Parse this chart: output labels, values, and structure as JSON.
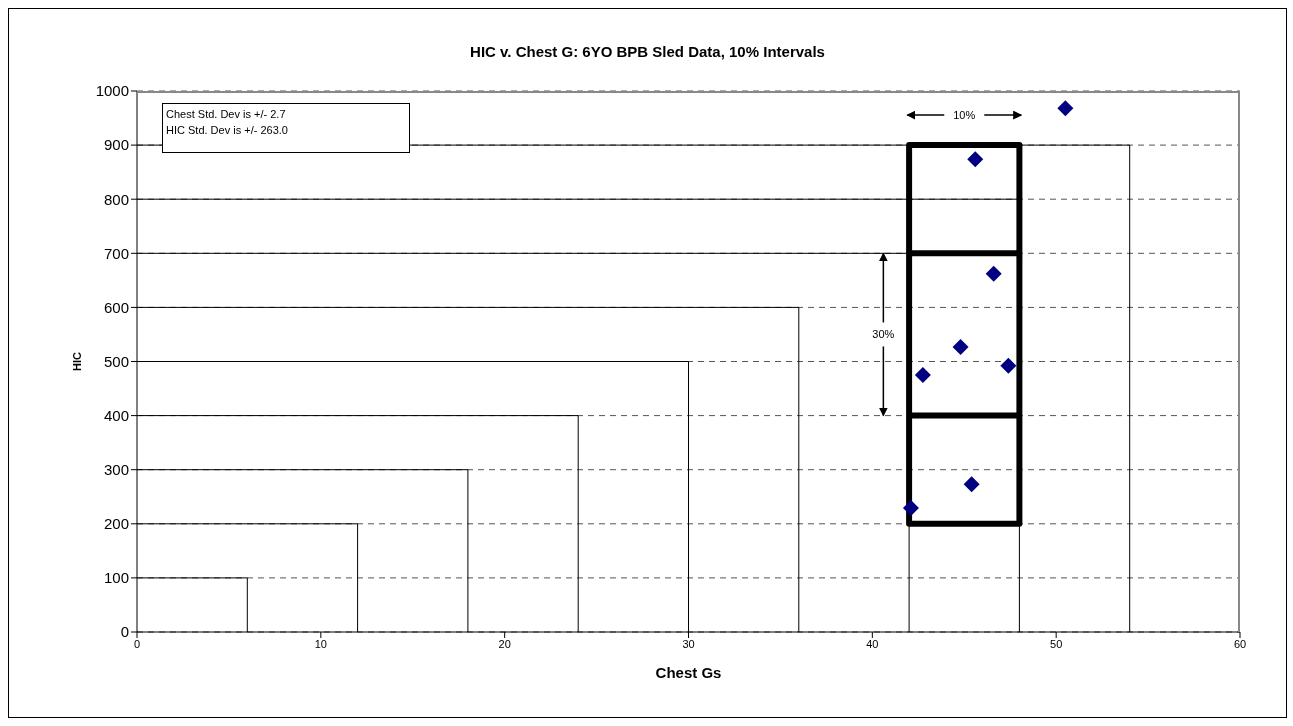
{
  "chart_data": {
    "type": "scatter",
    "title": "HIC v. Chest G: 6YO BPB Sled Data, 10% Intervals",
    "xlabel": "Chest Gs",
    "ylabel": "HIC",
    "xlim": [
      0,
      60
    ],
    "xticks": [
      0,
      10,
      20,
      30,
      40,
      50,
      60
    ],
    "ylim": [
      0,
      1000
    ],
    "yticks": [
      0,
      100,
      200,
      300,
      400,
      500,
      600,
      700,
      800,
      900,
      1000
    ],
    "grid": "y",
    "annotations": [
      "Chest Std. Dev is +/- 2.7",
      "HIC Std. Dev is +/- 263.0",
      "10%",
      {
        "text": "30%",
        "x": 40.6,
        "y": 700
      }
    ],
    "series": [
      {
        "color": "#000080",
        "marker": "diamond",
        "x": [
          42.1,
          42.75,
          44.8,
          45.4,
          45.6,
          46.6,
          47.4,
          50.5
        ],
        "values": [
          229,
          475,
          527,
          273,
          874,
          662,
          492,
          968
        ]
      },
      {
        "type": "step",
        "color": "#000000",
        "x": [
          0,
          6
        ],
        "values": [
          100,
          0
        ]
      },
      {
        "type": "step",
        "color": "#000000",
        "x": [
          0,
          12
        ],
        "values": [
          200,
          0
        ]
      },
      {
        "type": "step",
        "color": "#000000",
        "x": [
          0,
          18
        ],
        "values": [
          300,
          0
        ]
      },
      {
        "type": "step",
        "color": "#000000",
        "x": [
          0,
          24
        ],
        "values": [
          400,
          0
        ]
      },
      {
        "type": "step",
        "color": "#000000",
        "x": [
          0,
          30
        ],
        "values": [
          500,
          0
        ]
      },
      {
        "type": "step",
        "color": "#000000",
        "x": [
          0,
          36
        ],
        "values": [
          600,
          0
        ]
      },
      {
        "type": "step",
        "color": "#000000",
        "x": [
          0,
          42
        ],
        "values": [
          700,
          0
        ]
      },
      {
        "type": "step",
        "color": "#000000",
        "x": [
          0,
          48
        ],
        "values": [
          800,
          0
        ]
      },
      {
        "type": "step",
        "color": "#000000",
        "x": [
          0,
          54
        ],
        "values": [
          900,
          0
        ]
      },
      {
        "type": "line",
        "color": "#000000",
        "x": [
          42,
          48,
          48,
          42,
          42,
          48,
          48,
          42,
          48,
          48
        ],
        "values": [
          400,
          400,
          200,
          200,
          900,
          900,
          700,
          700,
          700,
          400
        ]
      }
    ]
  }
}
